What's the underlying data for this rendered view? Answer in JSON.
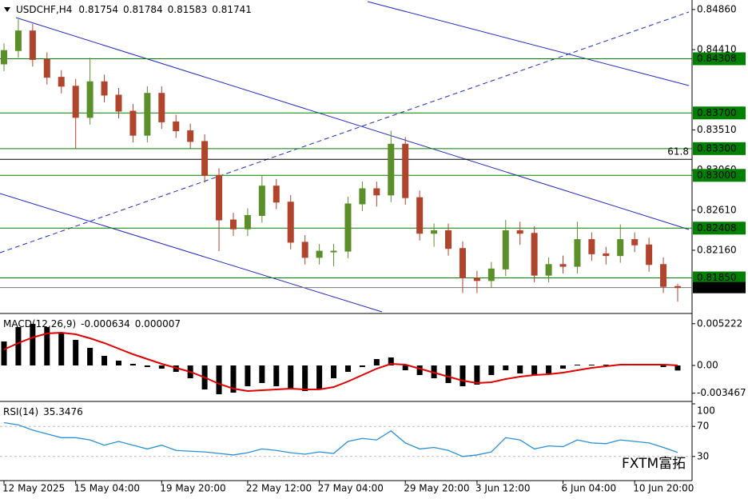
{
  "watermark": "FXTM富拓",
  "chart_data": [
    {
      "type": "candlestick",
      "title": "USDCHF,H4",
      "categories": [
        "12 May 2025",
        null,
        null,
        null,
        null,
        "15 May 04:00",
        null,
        null,
        null,
        null,
        null,
        "19 May 20:00",
        null,
        null,
        null,
        null,
        null,
        "22 May 12:00",
        null,
        null,
        null,
        null,
        "27 May 04:00",
        null,
        null,
        null,
        null,
        null,
        "29 May 20:00",
        null,
        null,
        null,
        null,
        "3 Jun 12:00",
        null,
        null,
        null,
        null,
        null,
        "6 Jun 04:00",
        null,
        null,
        null,
        null,
        "10 Jun 20:00",
        null,
        null,
        null
      ],
      "open": [
        0.8425,
        0.844,
        0.8462,
        0.843,
        0.841,
        0.84,
        0.8365,
        0.8405,
        0.839,
        0.8372,
        0.8345,
        0.8392,
        0.836,
        0.835,
        0.8338,
        0.83,
        0.825,
        0.824,
        0.8255,
        0.8288,
        0.827,
        0.8225,
        0.8208,
        0.8215,
        0.8215,
        0.8268,
        0.8285,
        0.8278,
        0.8335,
        0.8275,
        0.8235,
        0.8238,
        0.8218,
        0.8185,
        0.8182,
        0.8195,
        0.8238,
        0.8235,
        0.8188,
        0.82,
        0.8198,
        0.8228,
        0.8212,
        0.821,
        0.8228,
        0.8222,
        0.82,
        0.81754
      ],
      "high": [
        0.8448,
        0.8475,
        0.847,
        0.8438,
        0.8418,
        0.8408,
        0.8432,
        0.8413,
        0.8398,
        0.838,
        0.84,
        0.84,
        0.8368,
        0.8358,
        0.8346,
        0.8308,
        0.8258,
        0.8263,
        0.83,
        0.8296,
        0.8278,
        0.8233,
        0.8223,
        0.8223,
        0.8276,
        0.8293,
        0.8293,
        0.835,
        0.8343,
        0.8283,
        0.8246,
        0.8246,
        0.8226,
        0.8193,
        0.8203,
        0.825,
        0.8248,
        0.8243,
        0.8208,
        0.821,
        0.8248,
        0.8236,
        0.822,
        0.8245,
        0.8236,
        0.823,
        0.8208,
        0.81784
      ],
      "low": [
        0.8417,
        0.8432,
        0.8422,
        0.8402,
        0.8392,
        0.833,
        0.8357,
        0.8382,
        0.8364,
        0.8337,
        0.8337,
        0.8352,
        0.8342,
        0.833,
        0.8292,
        0.8215,
        0.8232,
        0.8232,
        0.8247,
        0.8262,
        0.8217,
        0.82,
        0.82,
        0.8198,
        0.8207,
        0.826,
        0.8265,
        0.827,
        0.8267,
        0.8227,
        0.822,
        0.821,
        0.8168,
        0.8168,
        0.8174,
        0.8187,
        0.8222,
        0.818,
        0.818,
        0.819,
        0.819,
        0.8204,
        0.82,
        0.8202,
        0.8214,
        0.8192,
        0.8168,
        0.81583
      ],
      "close": [
        0.844,
        0.8462,
        0.843,
        0.841,
        0.84,
        0.8365,
        0.8405,
        0.839,
        0.8372,
        0.8345,
        0.8392,
        0.836,
        0.835,
        0.8338,
        0.83,
        0.825,
        0.824,
        0.8255,
        0.8288,
        0.827,
        0.8225,
        0.8208,
        0.8215,
        0.8215,
        0.8268,
        0.8285,
        0.8278,
        0.8335,
        0.8275,
        0.8235,
        0.8238,
        0.8218,
        0.8185,
        0.8182,
        0.8195,
        0.8238,
        0.8235,
        0.8188,
        0.82,
        0.8198,
        0.8228,
        0.8212,
        0.821,
        0.8228,
        0.8222,
        0.82,
        0.81754,
        0.81741
      ],
      "up_color": "#5a8f29",
      "down_color": "#b0442c",
      "ylim": [
        0.8146,
        0.8494
      ],
      "yticks": [
        {
          "value": 0.8486,
          "label": "0.84860"
        },
        {
          "value": 0.8441,
          "label": "0.84410"
        },
        {
          "value": 0.8351,
          "label": "0.83510"
        },
        {
          "value": 0.8306,
          "label": "0.83060"
        },
        {
          "value": 0.8261,
          "label": "0.82610"
        },
        {
          "value": 0.8216,
          "label": "0.82160"
        }
      ],
      "levels": [
        {
          "value": 0.84308,
          "label": "0.84308"
        },
        {
          "value": 0.837,
          "label": "0.83700"
        },
        {
          "value": 0.833,
          "label": "0.83300"
        },
        {
          "value": 0.83,
          "label": "0.83000"
        },
        {
          "value": 0.82408,
          "label": "0.82408"
        },
        {
          "value": 0.8185,
          "label": "0.81850"
        }
      ],
      "level_color": "#008000",
      "fib": {
        "value": 0.8318,
        "label": "61.8"
      }
    },
    {
      "type": "macd",
      "title": "MACD(12,26,9)",
      "values": [
        0.003,
        0.0048,
        0.0052,
        0.0048,
        0.004,
        0.0032,
        0.0022,
        0.0012,
        0.0006,
        0.0002,
        -0.0002,
        -0.0004,
        -0.0008,
        -0.0016,
        -0.003,
        -0.0036,
        -0.0034,
        -0.0026,
        -0.0022,
        -0.0026,
        -0.003,
        -0.0032,
        -0.003,
        -0.0016,
        -0.0008,
        -0.0002,
        0.0008,
        0.001,
        -0.0006,
        -0.0012,
        -0.0016,
        -0.0022,
        -0.0026,
        -0.0024,
        -0.0012,
        -0.0006,
        -0.001,
        -0.0012,
        -0.001,
        -0.0004,
        0.0001,
        0.0001,
        0.0001,
        0.0001,
        0.0001,
        0.0001,
        -0.0002,
        -0.000634
      ],
      "signal": [
        0.002,
        0.0028,
        0.0035,
        0.004,
        0.0041,
        0.0039,
        0.0034,
        0.0028,
        0.0021,
        0.0014,
        0.0008,
        0.0002,
        -0.0003,
        -0.0008,
        -0.0015,
        -0.0023,
        -0.0029,
        -0.0032,
        -0.0031,
        -0.003,
        -0.0029,
        -0.003,
        -0.003,
        -0.0027,
        -0.002,
        -0.0012,
        -0.0004,
        0.0002,
        0.0001,
        -0.0004,
        -0.0009,
        -0.0014,
        -0.0019,
        -0.0022,
        -0.0021,
        -0.0017,
        -0.0014,
        -0.0012,
        -0.0011,
        -0.0009,
        -0.0006,
        -0.0003,
        -0.0001,
        0.0001,
        0.0001,
        0.0001,
        0.0001,
        7e-06
      ],
      "color": "#000000",
      "signal_color": "#e00000",
      "ylim": [
        -0.0043,
        0.0063
      ],
      "yticks": [
        0.005222,
        {
          "value": 0,
          "label": "0.00"
        },
        -0.003467
      ]
    },
    {
      "type": "rsi",
      "title": "RSI(14)",
      "values": [
        75,
        72,
        65,
        60,
        55,
        55,
        52,
        45,
        50,
        45,
        40,
        45,
        38,
        37,
        36,
        34,
        32,
        35,
        40,
        38,
        35,
        33,
        36,
        34,
        50,
        54,
        52,
        64,
        48,
        40,
        42,
        38,
        30,
        32,
        36,
        55,
        52,
        40,
        44,
        43,
        52,
        48,
        47,
        52,
        50,
        48,
        42,
        35.3476
      ],
      "color": "#2b8fd6",
      "ylim": [
        0,
        100
      ],
      "yticks": [
        100,
        70,
        30
      ]
    }
  ]
}
